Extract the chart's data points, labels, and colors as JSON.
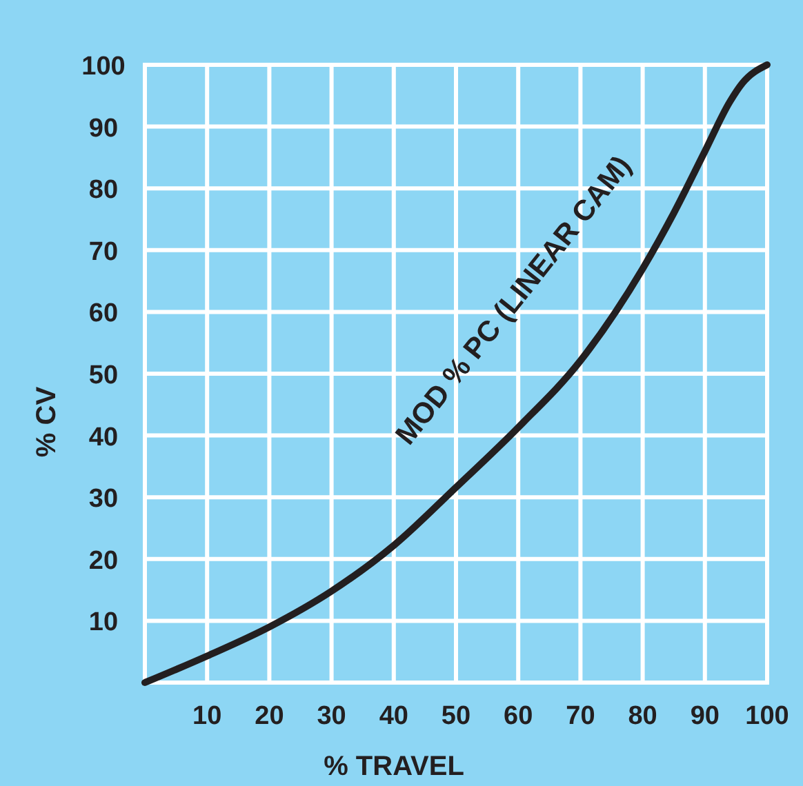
{
  "chart_data": {
    "type": "line",
    "xlabel": "% TRAVEL",
    "ylabel": "% CV",
    "xlim": [
      0,
      100
    ],
    "ylim": [
      0,
      100
    ],
    "xticks": [
      10,
      20,
      30,
      40,
      50,
      60,
      70,
      80,
      90,
      100
    ],
    "yticks": [
      10,
      20,
      30,
      40,
      50,
      60,
      70,
      80,
      90,
      100
    ],
    "grid": true,
    "legend": false,
    "marker": "none",
    "line_style": "solid",
    "x": [
      0,
      10,
      20,
      30,
      40,
      50,
      60,
      70,
      80,
      85,
      90,
      94,
      96,
      100
    ],
    "series": [
      {
        "name": "MOD % PC (LINEAR CAM)",
        "color": "#231f20",
        "values": [
          0,
          4.3,
          9,
          14.8,
          22.2,
          31.6,
          41.3,
          52.1,
          67,
          76,
          86,
          94,
          97,
          100
        ]
      }
    ]
  }
}
